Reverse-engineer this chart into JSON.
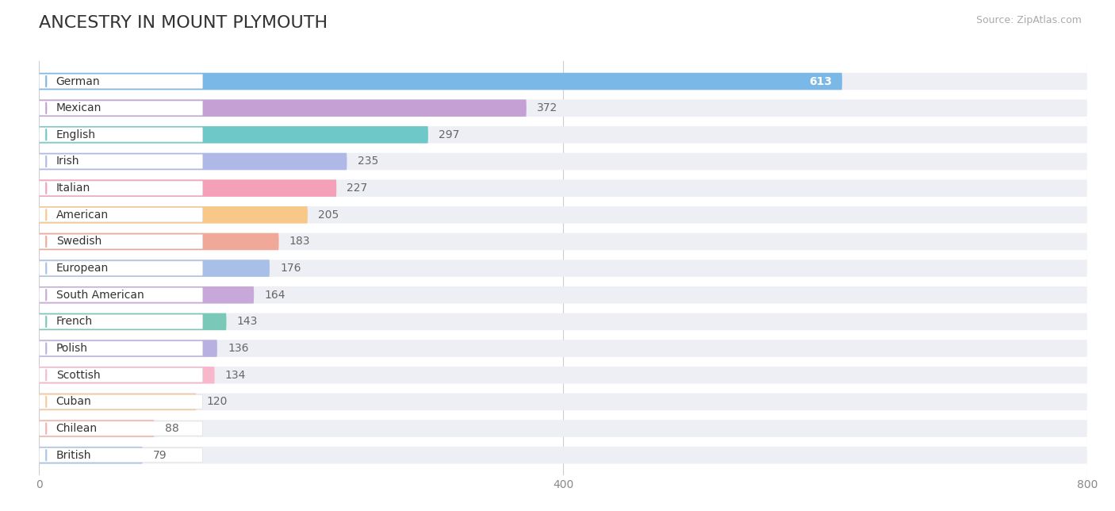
{
  "title": "ANCESTRY IN MOUNT PLYMOUTH",
  "source_text": "Source: ZipAtlas.com",
  "categories": [
    "German",
    "Mexican",
    "English",
    "Irish",
    "Italian",
    "American",
    "Swedish",
    "European",
    "South American",
    "French",
    "Polish",
    "Scottish",
    "Cuban",
    "Chilean",
    "British"
  ],
  "values": [
    613,
    372,
    297,
    235,
    227,
    205,
    183,
    176,
    164,
    143,
    136,
    134,
    120,
    88,
    79
  ],
  "bar_colors": [
    "#7ab8e8",
    "#c4a0d4",
    "#6ec8c8",
    "#b0b8e8",
    "#f4a0b8",
    "#f8c888",
    "#f0a898",
    "#a8c0e8",
    "#c8a8d8",
    "#7ac8b8",
    "#b8b0e0",
    "#f8b8cc",
    "#f8c898",
    "#f8b0a8",
    "#a8c4e8"
  ],
  "bg_track_color": "#eeeff4",
  "xlim": [
    0,
    800
  ],
  "xticks": [
    0,
    400,
    800
  ],
  "background_color": "#ffffff",
  "title_fontsize": 16,
  "bar_height": 0.64,
  "value_fontsize": 10,
  "label_fontsize": 10
}
